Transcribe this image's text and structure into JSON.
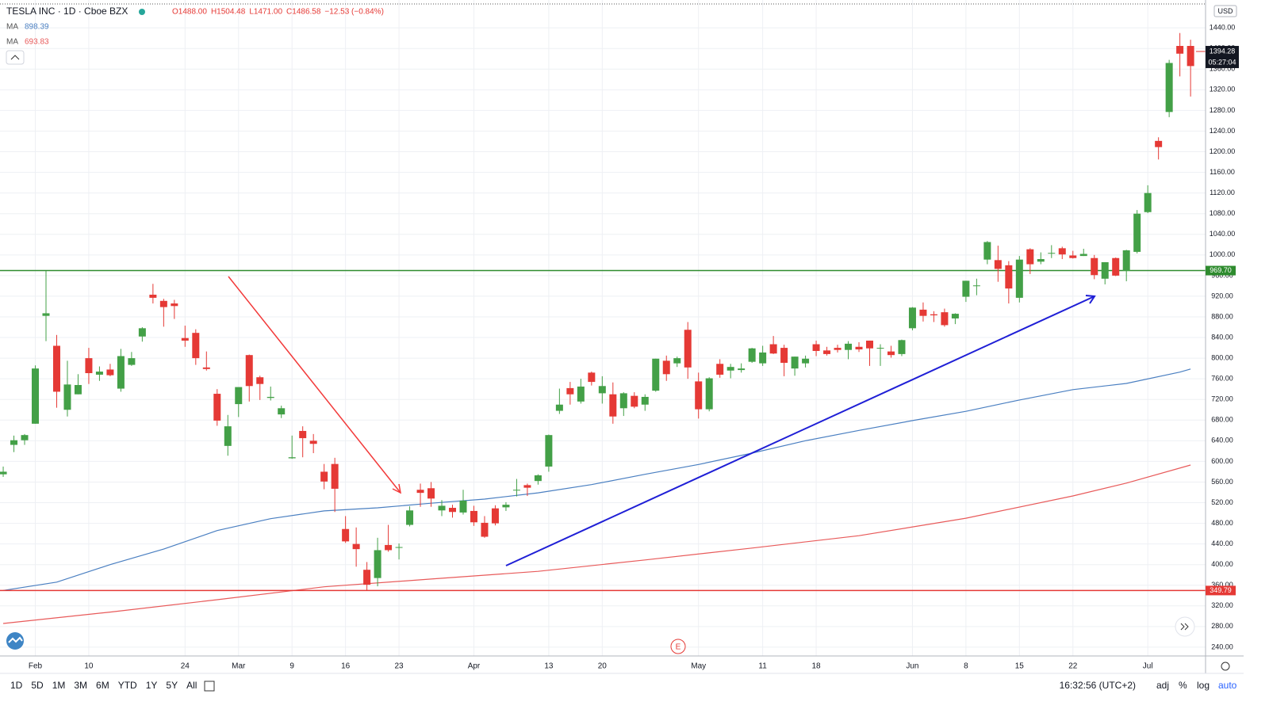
{
  "chart_data": {
    "type": "candlestick",
    "title": "TESLA INC · 1D · Cboe BZX",
    "quote": [
      "O1488.00",
      "H1504.48",
      "L1471.00",
      "C1486.58",
      "−12.53 (−0.84%)"
    ],
    "up_color": "#43a047",
    "down_color": "#e53935",
    "ohlc": [
      [
        575,
        590,
        570,
        580
      ],
      [
        632,
        650,
        618,
        641
      ],
      [
        641,
        653,
        632,
        651
      ],
      [
        673,
        786,
        673,
        780
      ],
      [
        882,
        969,
        833,
        887
      ],
      [
        824,
        845,
        704,
        735
      ],
      [
        700,
        795,
        687,
        749
      ],
      [
        730,
        769,
        730,
        748
      ],
      [
        800,
        820,
        750,
        771
      ],
      [
        768,
        784,
        756,
        774
      ],
      [
        778,
        789,
        765,
        767
      ],
      [
        741,
        818,
        735,
        804
      ],
      [
        787,
        812,
        785,
        800
      ],
      [
        842,
        860,
        832,
        858
      ],
      [
        923,
        944,
        906,
        917
      ],
      [
        911,
        915,
        861,
        899
      ],
      [
        906,
        913,
        876,
        901
      ],
      [
        839,
        863,
        822,
        834
      ],
      [
        849,
        856,
        787,
        800
      ],
      [
        782,
        813,
        776,
        779
      ],
      [
        731,
        740,
        669,
        679
      ],
      [
        630,
        690,
        611,
        668
      ],
      [
        711,
        743,
        686,
        744
      ],
      [
        806,
        807,
        716,
        746
      ],
      [
        763,
        766,
        719,
        750
      ],
      [
        723,
        745,
        718,
        725
      ],
      [
        691,
        708,
        684,
        703
      ],
      [
        606,
        650,
        605,
        608
      ],
      [
        659,
        668,
        608,
        645
      ],
      [
        640,
        653,
        616,
        634
      ],
      [
        580,
        595,
        546,
        561
      ],
      [
        595,
        607,
        502,
        547
      ],
      [
        469,
        494,
        442,
        445
      ],
      [
        440,
        472,
        396,
        430
      ],
      [
        390,
        405,
        350,
        361
      ],
      [
        374,
        452,
        358,
        428
      ],
      [
        438,
        477,
        425,
        428
      ],
      [
        433,
        441,
        410,
        434
      ],
      [
        477,
        513,
        474,
        505
      ],
      [
        545,
        557,
        512,
        539
      ],
      [
        548,
        560,
        512,
        528
      ],
      [
        505,
        525,
        494,
        514
      ],
      [
        510,
        516,
        491,
        502
      ],
      [
        501,
        545,
        497,
        524
      ],
      [
        504,
        514,
        475,
        482
      ],
      [
        481,
        494,
        452,
        454
      ],
      [
        509,
        515,
        476,
        480
      ],
      [
        511,
        521,
        504,
        516
      ],
      [
        545,
        566,
        532,
        545
      ],
      [
        554,
        557,
        533,
        549
      ],
      [
        562,
        575,
        555,
        573
      ],
      [
        590,
        652,
        580,
        651
      ],
      [
        698,
        741,
        692,
        710
      ],
      [
        742,
        754,
        710,
        730
      ],
      [
        716,
        760,
        712,
        745
      ],
      [
        772,
        774,
        747,
        754
      ],
      [
        732,
        765,
        712,
        746
      ],
      [
        730,
        753,
        673,
        687
      ],
      [
        703,
        734,
        688,
        732
      ],
      [
        727,
        734,
        703,
        706
      ],
      [
        710,
        730,
        698,
        725
      ],
      [
        737,
        799,
        735,
        799
      ],
      [
        795,
        805,
        756,
        769
      ],
      [
        790,
        803,
        783,
        800
      ],
      [
        855,
        870,
        760,
        782
      ],
      [
        755,
        772,
        683,
        701
      ],
      [
        701,
        763,
        697,
        761
      ],
      [
        789,
        798,
        762,
        768
      ],
      [
        776,
        789,
        761,
        783
      ],
      [
        777,
        790,
        772,
        780
      ],
      [
        793,
        820,
        791,
        819
      ],
      [
        790,
        824,
        785,
        811
      ],
      [
        827,
        843,
        808,
        809
      ],
      [
        820,
        826,
        765,
        791
      ],
      [
        780,
        803,
        766,
        803
      ],
      [
        790,
        805,
        782,
        799
      ],
      [
        827,
        834,
        804,
        814
      ],
      [
        815,
        822,
        805,
        808
      ],
      [
        820,
        826,
        811,
        816
      ],
      [
        816,
        833,
        798,
        828
      ],
      [
        822,
        831,
        812,
        817
      ],
      [
        834,
        834,
        785,
        819
      ],
      [
        820,
        827,
        785,
        820
      ],
      [
        813,
        824,
        801,
        806
      ],
      [
        808,
        836,
        804,
        835
      ],
      [
        858,
        899,
        854,
        898
      ],
      [
        894,
        908,
        871,
        882
      ],
      [
        885,
        891,
        870,
        883
      ],
      [
        889,
        896,
        861,
        864
      ],
      [
        877,
        887,
        866,
        886
      ],
      [
        919,
        950,
        909,
        950
      ],
      [
        940,
        954,
        922,
        941
      ],
      [
        991,
        1027,
        982,
        1025
      ],
      [
        990,
        1018,
        948,
        973
      ],
      [
        980,
        988,
        906,
        935
      ],
      [
        917,
        998,
        908,
        991
      ],
      [
        1011,
        1013,
        963,
        982
      ],
      [
        987,
        1005,
        982,
        992
      ],
      [
        1004,
        1019,
        994,
        1004
      ],
      [
        1013,
        1016,
        992,
        1001
      ],
      [
        999,
        1008,
        993,
        994
      ],
      [
        998,
        1012,
        998,
        1002
      ],
      [
        994,
        1000,
        953,
        961
      ],
      [
        954,
        986,
        943,
        986
      ],
      [
        994,
        995,
        959,
        960
      ],
      [
        969,
        1010,
        949,
        1009
      ],
      [
        1006,
        1087,
        1003,
        1080
      ],
      [
        1083,
        1135,
        1081,
        1120
      ],
      [
        1221,
        1228,
        1185,
        1209
      ],
      [
        1277,
        1378,
        1267,
        1372
      ],
      [
        1405,
        1430,
        1346,
        1390
      ],
      [
        1405,
        1417,
        1307,
        1366
      ]
    ],
    "moving_averages": [
      {
        "name": "MA",
        "value_label": "898.39",
        "color": "#4a7fc1",
        "x": [
          0,
          5,
          10,
          15,
          20,
          25,
          30,
          35,
          40,
          45,
          50,
          55,
          60,
          65,
          70,
          75,
          80,
          85,
          90,
          95,
          100,
          105,
          110,
          111
        ],
        "values": [
          350,
          366,
          400,
          430,
          466,
          489,
          504,
          510,
          519,
          527,
          539,
          555,
          575,
          594,
          616,
          640,
          660,
          679,
          697,
          719,
          739,
          751,
          773,
          779
        ]
      },
      {
        "name": "MA",
        "value_label": "693.83",
        "color": "#e85a5a",
        "x": [
          0,
          10,
          20,
          30,
          40,
          50,
          60,
          70,
          80,
          90,
          100,
          105,
          111
        ],
        "values": [
          286,
          308,
          332,
          357,
          372,
          387,
          409,
          432,
          456,
          490,
          533,
          558,
          593
        ]
      }
    ],
    "levels": [
      {
        "value": 969.7,
        "label": "969.70",
        "color": "#2e8b2e"
      },
      {
        "value": 349.79,
        "label": "349.79",
        "color": "#e53935"
      }
    ],
    "last_price": {
      "value": 1394.28,
      "label": "1394.28",
      "countdown": "05:27:04"
    },
    "currency": "USD",
    "event_marker": "E",
    "xlim": [
      -0.3,
      112.4
    ],
    "ylim": [
      223,
      1494
    ],
    "xticks": [
      {
        "value": 3,
        "label": "Feb"
      },
      {
        "value": 8,
        "label": "10"
      },
      {
        "value": 17,
        "label": "24"
      },
      {
        "value": 22,
        "label": "Mar"
      },
      {
        "value": 27,
        "label": "9"
      },
      {
        "value": 32,
        "label": "16"
      },
      {
        "value": 37,
        "label": "23"
      },
      {
        "value": 44,
        "label": "Apr"
      },
      {
        "value": 51,
        "label": "13"
      },
      {
        "value": 56,
        "label": "20"
      },
      {
        "value": 65,
        "label": "May"
      },
      {
        "value": 71,
        "label": "11"
      },
      {
        "value": 76,
        "label": "18"
      },
      {
        "value": 85,
        "label": "Jun"
      },
      {
        "value": 90,
        "label": "8"
      },
      {
        "value": 95,
        "label": "15"
      },
      {
        "value": 100,
        "label": "22"
      },
      {
        "value": 107,
        "label": "Jul"
      }
    ],
    "yticks": [
      {
        "value": 240,
        "label": "240.00"
      },
      {
        "value": 280,
        "label": "280.00"
      },
      {
        "value": 320,
        "label": "320.00"
      },
      {
        "value": 360,
        "label": "360.00"
      },
      {
        "value": 400,
        "label": "400.00"
      },
      {
        "value": 440,
        "label": "440.00"
      },
      {
        "value": 480,
        "label": "480.00"
      },
      {
        "value": 520,
        "label": "520.00"
      },
      {
        "value": 560,
        "label": "560.00"
      },
      {
        "value": 600,
        "label": "600.00"
      },
      {
        "value": 640,
        "label": "640.00"
      },
      {
        "value": 680,
        "label": "680.00"
      },
      {
        "value": 720,
        "label": "720.00"
      },
      {
        "value": 760,
        "label": "760.00"
      },
      {
        "value": 800,
        "label": "800.00"
      },
      {
        "value": 840,
        "label": "840.00"
      },
      {
        "value": 880,
        "label": "880.00"
      },
      {
        "value": 920,
        "label": "920.00"
      },
      {
        "value": 960,
        "label": "960.00"
      },
      {
        "value": 1000,
        "label": "1000.00"
      },
      {
        "value": 1040,
        "label": "1040.00"
      },
      {
        "value": 1080,
        "label": "1080.00"
      },
      {
        "value": 1120,
        "label": "1120.00"
      },
      {
        "value": 1160,
        "label": "1160.00"
      },
      {
        "value": 1200,
        "label": "1200.00"
      },
      {
        "value": 1240,
        "label": "1240.00"
      },
      {
        "value": 1280,
        "label": "1280.00"
      },
      {
        "value": 1320,
        "label": "1320.00"
      },
      {
        "value": 1360,
        "label": "1360.00"
      },
      {
        "value": 1400,
        "label": "1400.00"
      },
      {
        "value": 1440,
        "label": "1440.00"
      }
    ],
    "grid": true
  },
  "toolbar": {
    "ranges": [
      "1D",
      "5D",
      "1M",
      "3M",
      "6M",
      "YTD",
      "1Y",
      "5Y",
      "All"
    ],
    "time": "16:32:56 (UTC+2)",
    "options": [
      "adj",
      "%",
      "log",
      "auto"
    ]
  }
}
